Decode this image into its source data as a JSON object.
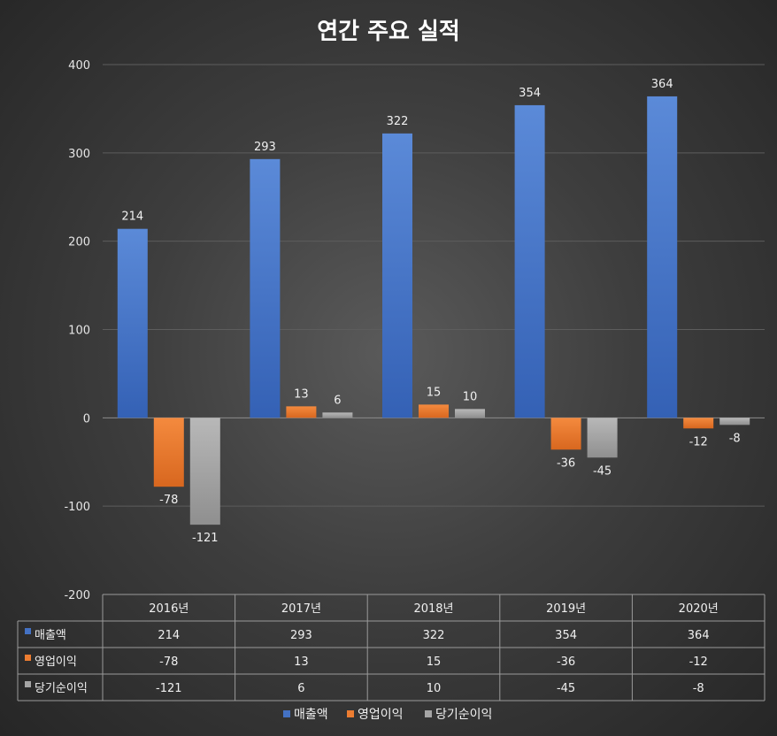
{
  "chart_data": {
    "type": "bar",
    "title": "연간 주요 실적",
    "categories": [
      "2016년",
      "2017년",
      "2018년",
      "2019년",
      "2020년"
    ],
    "series": [
      {
        "name": "매출액",
        "values": [
          214,
          293,
          322,
          354,
          364
        ],
        "color": "#4472c4"
      },
      {
        "name": "영업이익",
        "values": [
          -78,
          13,
          15,
          -36,
          -12
        ],
        "color": "#ed7d31"
      },
      {
        "name": "당기순이익",
        "values": [
          -121,
          6,
          10,
          -45,
          -8
        ],
        "color": "#a5a5a5"
      }
    ],
    "ylim": [
      -200,
      400
    ],
    "yticks": [
      400,
      300,
      200,
      100,
      0,
      -100,
      -200
    ],
    "grid": true,
    "data_table": true,
    "legend_position": "bottom"
  }
}
